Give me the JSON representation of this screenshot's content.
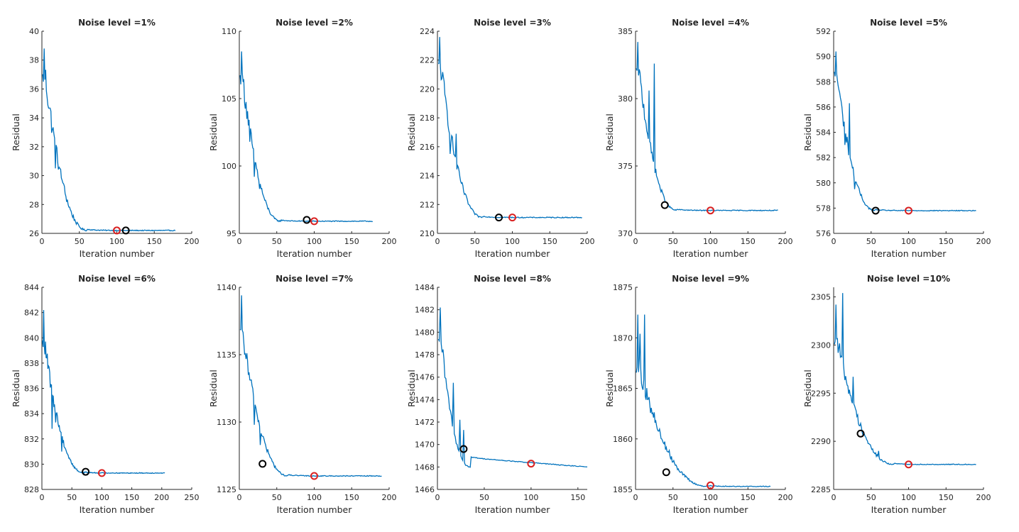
{
  "figure": {
    "ylabel": "Residual",
    "xlabel": "Iteration number",
    "colors": {
      "line": "#0072BD",
      "black_marker": "#000000",
      "red_marker": "#D92121",
      "axis": "#262626",
      "background": "#ffffff"
    }
  },
  "chart_data": [
    {
      "type": "line",
      "title": "Noise level =1%",
      "xlabel": "Iteration number",
      "ylabel": "Residual",
      "xlim": [
        0,
        200
      ],
      "ylim": [
        26,
        40
      ],
      "xticks": [
        0,
        50,
        100,
        150,
        200
      ],
      "yticks": [
        26,
        28,
        30,
        32,
        34,
        36,
        38,
        40
      ],
      "xtick_labels": [
        "0",
        "50",
        "100",
        "150",
        "200"
      ],
      "ytick_labels": [
        "26",
        "28",
        "30",
        "32",
        "34",
        "36",
        "38",
        "40"
      ],
      "x_end": 178,
      "start": 36.8,
      "peak": 38.8,
      "drop_end": 60,
      "final": 26.2,
      "noise": 1.6,
      "spikes": [
        [
          14,
          33.2
        ],
        [
          18,
          30.5
        ],
        [
          24,
          30.5
        ],
        [
          28,
          29.5
        ]
      ],
      "markers": [
        {
          "color": "black",
          "x": 112,
          "y": 26.2
        },
        {
          "color": "red",
          "x": 100,
          "y": 26.2
        }
      ]
    },
    {
      "type": "line",
      "title": "Noise level =2%",
      "xlabel": "Iteration number",
      "ylabel": "Residual",
      "xlim": [
        0,
        200
      ],
      "ylim": [
        95,
        110
      ],
      "xticks": [
        0,
        50,
        100,
        150,
        200
      ],
      "yticks": [
        95,
        100,
        105,
        110
      ],
      "xtick_labels": [
        "0",
        "50",
        "100",
        "150",
        "200"
      ],
      "ytick_labels": [
        "95",
        "100",
        "105",
        "110"
      ],
      "x_end": 178,
      "start": 106.5,
      "peak": 108.5,
      "drop_end": 55,
      "final": 95.9,
      "noise": 1.4,
      "spikes": [
        [
          14,
          101.8
        ],
        [
          20,
          99.2
        ],
        [
          27,
          98.3
        ]
      ],
      "markers": [
        {
          "color": "black",
          "x": 90,
          "y": 96.0
        },
        {
          "color": "red",
          "x": 100,
          "y": 95.9
        }
      ]
    },
    {
      "type": "line",
      "title": "Noise level =3%",
      "xlabel": "Iteration number",
      "ylabel": "Residual",
      "xlim": [
        0,
        200
      ],
      "ylim": [
        210,
        224
      ],
      "xticks": [
        0,
        50,
        100,
        150,
        200
      ],
      "yticks": [
        210,
        212,
        214,
        216,
        218,
        220,
        222,
        224
      ],
      "xtick_labels": [
        "0",
        "50",
        "100",
        "150",
        "200"
      ],
      "ytick_labels": [
        "210",
        "212",
        "214",
        "216",
        "218",
        "220",
        "222",
        "224"
      ],
      "x_end": 193,
      "start": 221.5,
      "peak": 223.6,
      "drop_end": 60,
      "final": 211.1,
      "noise": 1.4,
      "spikes": [
        [
          17,
          215.5
        ],
        [
          25,
          216.9
        ],
        [
          34,
          213.3
        ]
      ],
      "markers": [
        {
          "color": "black",
          "x": 82,
          "y": 211.1
        },
        {
          "color": "red",
          "x": 100,
          "y": 211.1
        }
      ]
    },
    {
      "type": "line",
      "title": "Noise level =4%",
      "xlabel": "Iteration number",
      "ylabel": "Residual",
      "xlim": [
        0,
        200
      ],
      "ylim": [
        370,
        385
      ],
      "xticks": [
        0,
        50,
        100,
        150,
        200
      ],
      "yticks": [
        370,
        375,
        380,
        385
      ],
      "xtick_labels": [
        "0",
        "50",
        "100",
        "150",
        "200"
      ],
      "ytick_labels": [
        "370",
        "375",
        "380",
        "385"
      ],
      "x_end": 190,
      "start": 382.0,
      "peak": 384.2,
      "drop_end": 55,
      "final": 371.7,
      "noise": 1.2,
      "spikes": [
        [
          18,
          380.6
        ],
        [
          25,
          382.6
        ],
        [
          33,
          373.3
        ]
      ],
      "markers": [
        {
          "color": "black",
          "x": 39,
          "y": 372.1
        },
        {
          "color": "red",
          "x": 100,
          "y": 371.7
        }
      ]
    },
    {
      "type": "line",
      "title": "Noise level =5%",
      "xlabel": "Iteration number",
      "ylabel": "Residual",
      "xlim": [
        0,
        200
      ],
      "ylim": [
        576,
        592
      ],
      "xticks": [
        0,
        50,
        100,
        150,
        200
      ],
      "yticks": [
        576,
        578,
        580,
        582,
        584,
        586,
        588,
        590,
        592
      ],
      "xtick_labels": [
        "0",
        "50",
        "100",
        "150",
        "200"
      ],
      "ytick_labels": [
        "576",
        "578",
        "580",
        "582",
        "584",
        "586",
        "588",
        "590",
        "592"
      ],
      "x_end": 190,
      "start": 588.5,
      "peak": 590.4,
      "drop_end": 55,
      "final": 577.8,
      "noise": 1.2,
      "spikes": [
        [
          15,
          583.0
        ],
        [
          21,
          586.3
        ],
        [
          28,
          579.5
        ]
      ],
      "markers": [
        {
          "color": "black",
          "x": 56,
          "y": 577.8
        },
        {
          "color": "red",
          "x": 100,
          "y": 577.8
        }
      ]
    },
    {
      "type": "line",
      "title": "Noise level =6%",
      "xlabel": "Iteration number",
      "ylabel": "Residual",
      "xlim": [
        0,
        250
      ],
      "ylim": [
        828,
        844
      ],
      "xticks": [
        0,
        50,
        100,
        150,
        200,
        250
      ],
      "yticks": [
        828,
        830,
        832,
        834,
        836,
        838,
        840,
        842,
        844
      ],
      "xtick_labels": [
        "0",
        "50",
        "100",
        "150",
        "200",
        "250"
      ],
      "ytick_labels": [
        "828",
        "830",
        "832",
        "834",
        "836",
        "838",
        "840",
        "842",
        "844"
      ],
      "x_end": 205,
      "start": 839.5,
      "peak": 842.2,
      "drop_end": 70,
      "final": 829.3,
      "noise": 1.2,
      "spikes": [
        [
          17,
          832.8
        ],
        [
          23,
          833.3
        ],
        [
          33,
          831.0
        ]
      ],
      "markers": [
        {
          "color": "black",
          "x": 73,
          "y": 829.4
        },
        {
          "color": "red",
          "x": 100,
          "y": 829.3
        }
      ]
    },
    {
      "type": "line",
      "title": "Noise level =7%",
      "xlabel": "Iteration number",
      "ylabel": "Residual",
      "xlim": [
        0,
        200
      ],
      "ylim": [
        1125,
        1140
      ],
      "xticks": [
        0,
        50,
        100,
        150,
        200
      ],
      "yticks": [
        1125,
        1130,
        1135,
        1140
      ],
      "xtick_labels": [
        "0",
        "50",
        "100",
        "150",
        "200"
      ],
      "ytick_labels": [
        "1125",
        "1130",
        "1135",
        "1140"
      ],
      "x_end": 190,
      "start": 1136.5,
      "peak": 1139.4,
      "drop_end": 65,
      "final": 1126.0,
      "noise": 1.2,
      "spikes": [
        [
          12,
          1133.5
        ],
        [
          20,
          1129.8
        ],
        [
          28,
          1128.3
        ]
      ],
      "markers": [
        {
          "color": "black",
          "x": 31,
          "y": 1126.9
        },
        {
          "color": "red",
          "x": 100,
          "y": 1126.0
        }
      ]
    },
    {
      "type": "line",
      "title": "Noise level =8%",
      "xlabel": "Iteration number",
      "ylabel": "Residual",
      "xlim": [
        0,
        160
      ],
      "ylim": [
        1466,
        1484
      ],
      "xticks": [
        0,
        50,
        100,
        150
      ],
      "yticks": [
        1466,
        1468,
        1470,
        1472,
        1474,
        1476,
        1478,
        1480,
        1482,
        1484
      ],
      "xtick_labels": [
        "0",
        "50",
        "100",
        "150"
      ],
      "ytick_labels": [
        "1466",
        "1468",
        "1470",
        "1472",
        "1474",
        "1476",
        "1478",
        "1480",
        "1482",
        "1484"
      ],
      "x_end": 160,
      "start": 1479.0,
      "peak": 1482.2,
      "drop_end": 35,
      "final": 1468.0,
      "mid_level": 1468.8,
      "noise": 1.2,
      "spikes": [
        [
          17,
          1475.5
        ],
        [
          24,
          1472.2
        ],
        [
          28,
          1471.3
        ]
      ],
      "markers": [
        {
          "color": "black",
          "x": 28,
          "y": 1469.6
        },
        {
          "color": "red",
          "x": 100,
          "y": 1468.3
        }
      ]
    },
    {
      "type": "line",
      "title": "Noise level =9%",
      "xlabel": "Iteration number",
      "ylabel": "Residual",
      "xlim": [
        0,
        200
      ],
      "ylim": [
        1855,
        1875
      ],
      "xticks": [
        0,
        50,
        100,
        150,
        200
      ],
      "yticks": [
        1855,
        1860,
        1865,
        1870,
        1875
      ],
      "xtick_labels": [
        "0",
        "50",
        "100",
        "150",
        "200"
      ],
      "ytick_labels": [
        "1855",
        "1860",
        "1865",
        "1870",
        "1875"
      ],
      "x_end": 180,
      "start": 1867.0,
      "peak": 1872.3,
      "drop_end": 95,
      "final": 1855.3,
      "noise": 1.3,
      "spikes": [
        [
          6,
          1870.4
        ],
        [
          12,
          1872.3
        ],
        [
          22,
          1862.5
        ],
        [
          30,
          1860.8
        ],
        [
          35,
          1860.0
        ]
      ],
      "markers": [
        {
          "color": "black",
          "x": 41,
          "y": 1856.7
        },
        {
          "color": "red",
          "x": 100,
          "y": 1855.4
        }
      ]
    },
    {
      "type": "line",
      "title": "Noise level =10%",
      "xlabel": "Iteration number",
      "ylabel": "Residual",
      "xlim": [
        0,
        200
      ],
      "ylim": [
        2285,
        2306
      ],
      "xticks": [
        0,
        50,
        100,
        150,
        200
      ],
      "yticks": [
        2285,
        2290,
        2295,
        2300,
        2305
      ],
      "xtick_labels": [
        "0",
        "50",
        "100",
        "150",
        "200"
      ],
      "ytick_labels": [
        "2285",
        "2290",
        "2295",
        "2300",
        "2305"
      ],
      "x_end": 190,
      "start": 2300.5,
      "peak": 2305.4,
      "drop_end": 80,
      "final": 2287.6,
      "noise": 1.2,
      "spikes": [
        [
          3,
          2304.2
        ],
        [
          12,
          2305.4
        ],
        [
          26,
          2296.7
        ],
        [
          37,
          2291.5
        ],
        [
          60,
          2289.0
        ]
      ],
      "markers": [
        {
          "color": "black",
          "x": 36,
          "y": 2290.8
        },
        {
          "color": "red",
          "x": 100,
          "y": 2287.6
        }
      ]
    }
  ]
}
